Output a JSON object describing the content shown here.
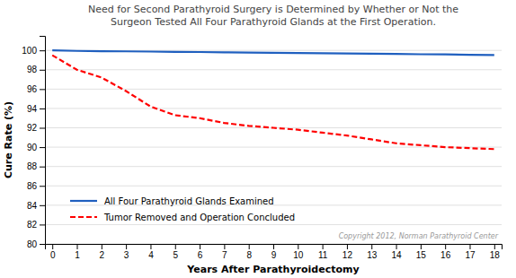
{
  "chart_data": {
    "type": "line",
    "title": [
      "Need for Second Parathyroid Surgery is Determined by Whether or Not the",
      "Surgeon Tested All Four Parathyroid Glands at the First Operation."
    ],
    "x_label": "Years After Parathyroidectomy",
    "y_label": "Cure Rate (%)",
    "annotations": [
      "Copyright 2012, Norman Parathyroid Center"
    ],
    "x": [
      0,
      1,
      2,
      3,
      4,
      5,
      6,
      7,
      8,
      9,
      10,
      11,
      12,
      13,
      14,
      15,
      16,
      17,
      18
    ],
    "series": [
      {
        "name": "All Four Parathyroid Glands Examined",
        "color": "#1F5FBF",
        "line_style": "solid",
        "values": [
          100.0,
          99.95,
          99.92,
          99.9,
          99.88,
          99.85,
          99.83,
          99.8,
          99.78,
          99.75,
          99.73,
          99.7,
          99.68,
          99.65,
          99.63,
          99.6,
          99.58,
          99.55,
          99.52
        ]
      },
      {
        "name": "Tumor Removed and Operation Concluded",
        "color": "#FF0000",
        "line_style": "dashed",
        "values": [
          99.5,
          98.0,
          97.2,
          95.8,
          94.2,
          93.3,
          93.0,
          92.5,
          92.2,
          92.0,
          91.8,
          91.5,
          91.2,
          90.8,
          90.4,
          90.2,
          90.0,
          89.9,
          89.8
        ]
      }
    ],
    "xlim": [
      -0.3,
      18.3
    ],
    "ylim": [
      80,
      101.5
    ],
    "xticks": [
      0,
      1,
      2,
      3,
      4,
      5,
      6,
      7,
      8,
      9,
      10,
      11,
      12,
      13,
      14,
      15,
      16,
      17,
      18
    ],
    "yticks": [
      80,
      82,
      84,
      86,
      88,
      90,
      92,
      94,
      96,
      98,
      100
    ],
    "grid": "y",
    "legend": "lower left"
  }
}
